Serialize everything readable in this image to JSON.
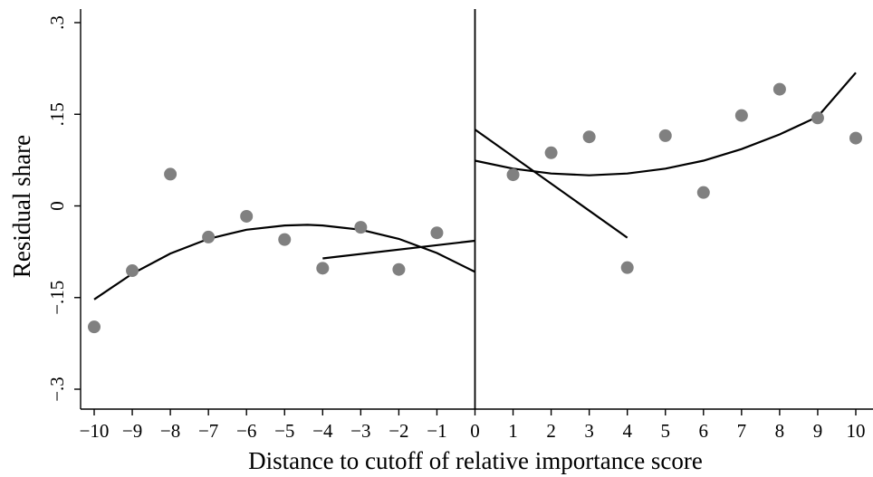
{
  "chart_data": {
    "type": "scatter",
    "title": "",
    "xlabel": "Distance to cutoff of relative importance score",
    "ylabel": "Residual share",
    "xlim": [
      -10,
      10
    ],
    "ylim": [
      -0.3,
      0.3
    ],
    "x_ticks": [
      -10,
      -9,
      -8,
      -7,
      -6,
      -5,
      -4,
      -3,
      -2,
      -1,
      0,
      1,
      2,
      3,
      4,
      5,
      6,
      7,
      8,
      9,
      10
    ],
    "x_tick_labels": [
      "−10",
      "−9",
      "−8",
      "−7",
      "−6",
      "−5",
      "−4",
      "−3",
      "−2",
      "−1",
      "0",
      "1",
      "2",
      "3",
      "4",
      "5",
      "6",
      "7",
      "8",
      "9",
      "10"
    ],
    "y_ticks": [
      -0.3,
      -0.15,
      0,
      0.15,
      0.3
    ],
    "y_tick_labels": [
      "−.3",
      "−.15",
      "0",
      ".15",
      ".3"
    ],
    "cutoff_x": 0,
    "grid": false,
    "points": {
      "x": [
        -10,
        -9,
        -8,
        -7,
        -6,
        -5,
        -4,
        -3,
        -2,
        -1,
        1,
        2,
        3,
        4,
        5,
        6,
        7,
        8,
        9,
        10
      ],
      "y": [
        -0.198,
        -0.106,
        0.052,
        -0.051,
        -0.017,
        -0.055,
        -0.102,
        -0.035,
        -0.104,
        -0.044,
        0.051,
        0.087,
        0.113,
        -0.101,
        0.115,
        0.022,
        0.148,
        0.191,
        0.144,
        0.111
      ]
    },
    "fits": [
      {
        "x": [
          -10,
          -9,
          -8,
          -7,
          -6,
          -5,
          -4.4,
          -4,
          -3,
          -2,
          -1,
          0
        ],
        "y": [
          -0.153,
          -0.111,
          -0.078,
          -0.054,
          -0.039,
          -0.032,
          -0.031,
          -0.032,
          -0.039,
          -0.054,
          -0.077,
          -0.108
        ]
      },
      {
        "x": [
          -4,
          0
        ],
        "y": [
          -0.086,
          -0.057
        ]
      },
      {
        "x": [
          0,
          1,
          2,
          3,
          4,
          5,
          6,
          7,
          8,
          9,
          10
        ],
        "y": [
          0.074,
          0.061,
          0.053,
          0.05,
          0.053,
          0.061,
          0.074,
          0.093,
          0.117,
          0.146,
          0.218
        ]
      },
      {
        "x": [
          0,
          4
        ],
        "y": [
          0.125,
          -0.052
        ]
      }
    ]
  }
}
